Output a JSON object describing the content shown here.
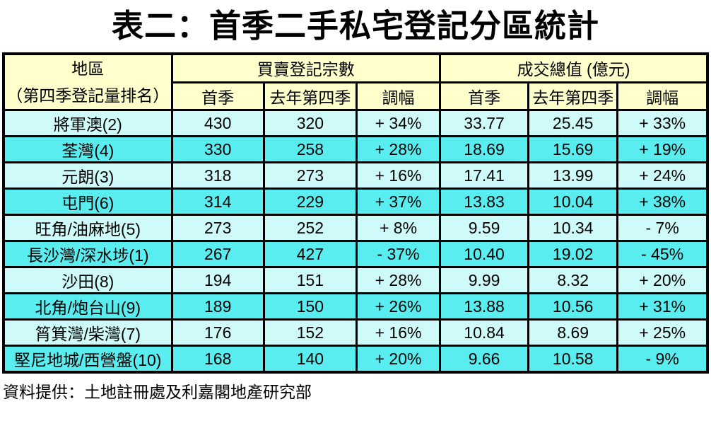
{
  "title": "表二：首季二手私宅登記分區統計",
  "source_note": "資料提供：土地註冊處及利嘉閣地產研究部",
  "colors": {
    "background": "#FFFFFF",
    "text": "#000000",
    "border": "#000000",
    "header_bg": "#FFFFCC",
    "row_light": "#CFFAFA",
    "row_bright": "#5AEDF0"
  },
  "table": {
    "header": {
      "district_title": "地區",
      "district_subtitle": "（第四季登記量排名）",
      "group_registrations": "買賣登記宗數",
      "group_value": "成交總值 (億元)",
      "sub_columns": [
        "首季",
        "去年第四季",
        "調幅",
        "首季",
        "去年第四季",
        "調幅"
      ]
    }
  },
  "chart_data": {
    "type": "table",
    "title": "表二：首季二手私宅登記分區統計",
    "column_groups": [
      {
        "label": "地區（第四季登記量排名）",
        "span": 1
      },
      {
        "label": "買賣登記宗數",
        "span": 3
      },
      {
        "label": "成交總值 (億元)",
        "span": 3
      }
    ],
    "columns": [
      "地區（第四季登記量排名）",
      "買賣登記宗數 首季",
      "買賣登記宗數 去年第四季",
      "買賣登記宗數 調幅",
      "成交總值(億元) 首季",
      "成交總值(億元) 去年第四季",
      "成交總值(億元) 調幅"
    ],
    "rows": [
      [
        "將軍澳(2)",
        "430",
        "320",
        "+ 34%",
        "33.77",
        "25.45",
        "+ 33%"
      ],
      [
        "荃灣(4)",
        "330",
        "258",
        "+ 28%",
        "18.69",
        "15.69",
        "+ 19%"
      ],
      [
        "元朗(3)",
        "318",
        "273",
        "+ 16%",
        "17.41",
        "13.99",
        "+ 24%"
      ],
      [
        "屯門(6)",
        "314",
        "229",
        "+ 37%",
        "13.83",
        "10.04",
        "+ 38%"
      ],
      [
        "旺角/油麻地(5)",
        "273",
        "252",
        "+ 8%",
        "9.59",
        "10.34",
        "- 7%"
      ],
      [
        "長沙灣/深水埗(1)",
        "267",
        "427",
        "- 37%",
        "10.40",
        "19.02",
        "- 45%"
      ],
      [
        "沙田(8)",
        "194",
        "151",
        "+ 28%",
        "9.99",
        "8.32",
        "+ 20%"
      ],
      [
        "北角/炮台山(9)",
        "189",
        "150",
        "+ 26%",
        "13.88",
        "10.56",
        "+ 31%"
      ],
      [
        "筲箕灣/柴灣(7)",
        "176",
        "152",
        "+ 16%",
        "10.84",
        "8.69",
        "+ 25%"
      ],
      [
        "堅尼地城/西營盤(10)",
        "168",
        "140",
        "+ 20%",
        "9.66",
        "10.58",
        "- 9%"
      ]
    ]
  }
}
